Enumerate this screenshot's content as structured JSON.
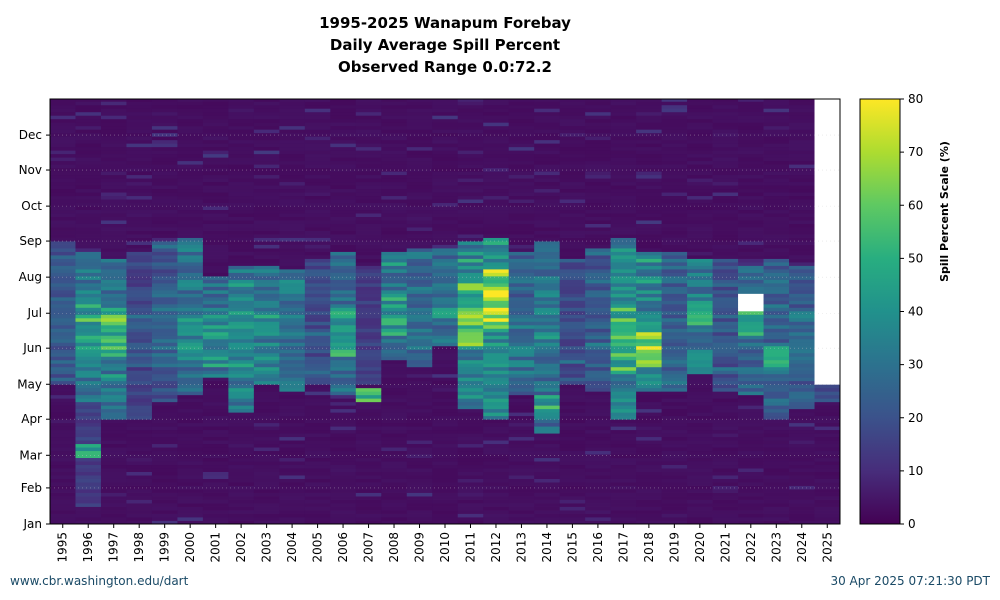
{
  "chart_data": {
    "type": "heatmap",
    "title": "1995-2025 Wanapum Forebay",
    "subtitle": "Daily Average Spill Percent",
    "range_text": "Observed Range 0.0:72.2",
    "x_categories": [
      "1995",
      "1996",
      "1997",
      "1998",
      "1999",
      "2000",
      "2001",
      "2002",
      "2003",
      "2004",
      "2005",
      "2006",
      "2007",
      "2008",
      "2009",
      "2010",
      "2011",
      "2012",
      "2013",
      "2014",
      "2015",
      "2016",
      "2017",
      "2018",
      "2019",
      "2020",
      "2021",
      "2022",
      "2023",
      "2024",
      "2025"
    ],
    "y_ticks": [
      "Jan",
      "Feb",
      "Mar",
      "Apr",
      "May",
      "Jun",
      "Jul",
      "Aug",
      "Sep",
      "Oct",
      "Nov",
      "Dec"
    ],
    "colorbar": {
      "label": "Spill Percent Scale (%)",
      "min": 0,
      "max": 80,
      "ticks": [
        "0",
        "10",
        "20",
        "30",
        "40",
        "50",
        "60",
        "70",
        "80"
      ],
      "colormap": "viridis"
    },
    "profiles": {
      "1995": [
        {
          "start": "May 01",
          "end": "Aug 31",
          "value": 22
        },
        {
          "start": "Jun 01",
          "end": "Jun 20",
          "value": 28
        }
      ],
      "1996": [
        {
          "start": "Jan 15",
          "end": "Apr 15",
          "value": 14
        },
        {
          "start": "Feb 25",
          "end": "Mar 10",
          "value": 45
        },
        {
          "start": "Apr 15",
          "end": "Aug 20",
          "value": 30
        },
        {
          "start": "May 20",
          "end": "Jul 20",
          "value": 45
        }
      ],
      "1997": [
        {
          "start": "Apr 01",
          "end": "Aug 15",
          "value": 30
        },
        {
          "start": "May 25",
          "end": "Jul 05",
          "value": 48
        },
        {
          "start": "Jun 20",
          "end": "Jul 01",
          "value": 55
        }
      ],
      "1998": [
        {
          "start": "Apr 01",
          "end": "Aug 20",
          "value": 16
        },
        {
          "start": "May 15",
          "end": "Jun 30",
          "value": 22
        }
      ],
      "1999": [
        {
          "start": "Apr 15",
          "end": "Aug 31",
          "value": 20
        },
        {
          "start": "May 15",
          "end": "Jul 15",
          "value": 26
        }
      ],
      "2000": [
        {
          "start": "Apr 20",
          "end": "Sep 01",
          "value": 30
        },
        {
          "start": "May 15",
          "end": "Jun 25",
          "value": 38
        }
      ],
      "2001": [
        {
          "start": "May 05",
          "end": "Aug 01",
          "value": 30
        },
        {
          "start": "May 15",
          "end": "Jun 30",
          "value": 38
        }
      ],
      "2002": [
        {
          "start": "Apr 05",
          "end": "Aug 10",
          "value": 32
        },
        {
          "start": "May 15",
          "end": "Jul 10",
          "value": 40
        }
      ],
      "2003": [
        {
          "start": "Apr 30",
          "end": "Aug 10",
          "value": 30
        },
        {
          "start": "May 10",
          "end": "Jun 30",
          "value": 34
        }
      ],
      "2004": [
        {
          "start": "Apr 25",
          "end": "Aug 05",
          "value": 30
        }
      ],
      "2005": [
        {
          "start": "May 01",
          "end": "Aug 15",
          "value": 18
        }
      ],
      "2006": [
        {
          "start": "Apr 20",
          "end": "Aug 20",
          "value": 28
        },
        {
          "start": "May 25",
          "end": "Jul 05",
          "value": 45
        }
      ],
      "2007": [
        {
          "start": "Apr 15",
          "end": "Apr 25",
          "value": 50
        },
        {
          "start": "May 01",
          "end": "Aug 10",
          "value": 14
        }
      ],
      "2008": [
        {
          "start": "May 20",
          "end": "Aug 20",
          "value": 30
        },
        {
          "start": "Jun 10",
          "end": "Jul 15",
          "value": 42
        }
      ],
      "2009": [
        {
          "start": "May 15",
          "end": "Aug 25",
          "value": 28
        }
      ],
      "2010": [
        {
          "start": "Jun 01",
          "end": "Aug 25",
          "value": 28
        },
        {
          "start": "Jun 20",
          "end": "Jul 10",
          "value": 36
        }
      ],
      "2011": [
        {
          "start": "Apr 10",
          "end": "Aug 31",
          "value": 35
        },
        {
          "start": "Jun 01",
          "end": "Jul 25",
          "value": 55
        }
      ],
      "2012": [
        {
          "start": "Apr 01",
          "end": "Sep 01",
          "value": 40
        },
        {
          "start": "Jun 15",
          "end": "Aug 05",
          "value": 65
        }
      ],
      "2013": [
        {
          "start": "Apr 20",
          "end": "Aug 20",
          "value": 24
        },
        {
          "start": "May 15",
          "end": "Jun 30",
          "value": 30
        }
      ],
      "2014": [
        {
          "start": "Mar 20",
          "end": "Aug 31",
          "value": 28
        },
        {
          "start": "Apr 01",
          "end": "Apr 20",
          "value": 40
        },
        {
          "start": "Jun 01",
          "end": "Jul 15",
          "value": 36
        }
      ],
      "2015": [
        {
          "start": "May 01",
          "end": "Aug 15",
          "value": 18
        }
      ],
      "2016": [
        {
          "start": "Apr 25",
          "end": "Aug 25",
          "value": 22
        }
      ],
      "2017": [
        {
          "start": "Apr 01",
          "end": "Sep 01",
          "value": 35
        },
        {
          "start": "May 10",
          "end": "Jul 05",
          "value": 50
        }
      ],
      "2018": [
        {
          "start": "Apr 25",
          "end": "Aug 20",
          "value": 35
        },
        {
          "start": "May 15",
          "end": "Jun 15",
          "value": 60
        },
        {
          "start": "May 25",
          "end": "Jun 05",
          "value": 68
        }
      ],
      "2019": [
        {
          "start": "Apr 25",
          "end": "Aug 20",
          "value": 24
        }
      ],
      "2020": [
        {
          "start": "May 10",
          "end": "Aug 15",
          "value": 32
        },
        {
          "start": "Jun 20",
          "end": "Jul 10",
          "value": 45
        }
      ],
      "2021": [
        {
          "start": "Apr 25",
          "end": "Aug 15",
          "value": 20
        }
      ],
      "2022": [
        {
          "start": "Apr 20",
          "end": "Aug 10",
          "value": 26
        },
        {
          "start": "Jun 10",
          "end": "Jul 15",
          "value": 48
        }
      ],
      "2023": [
        {
          "start": "Apr 01",
          "end": "Aug 15",
          "value": 25
        },
        {
          "start": "May 10",
          "end": "Jun 05",
          "value": 45
        }
      ],
      "2024": [
        {
          "start": "Apr 10",
          "end": "Aug 10",
          "value": 22
        },
        {
          "start": "May 20",
          "end": "Jun 30",
          "value": 28
        }
      ],
      "2025": [
        {
          "start": "Apr 15",
          "end": "Apr 30",
          "value": 20
        }
      ]
    },
    "missing": [
      {
        "year": "2022",
        "start": "Jul 01",
        "end": "Jul 15"
      },
      {
        "year": "2025",
        "start": "May 01",
        "end": "Dec 31"
      }
    ]
  },
  "footer": {
    "source": "www.cbr.washington.edu/dart",
    "timestamp": "30 Apr 2025 07:21:30 PDT"
  }
}
